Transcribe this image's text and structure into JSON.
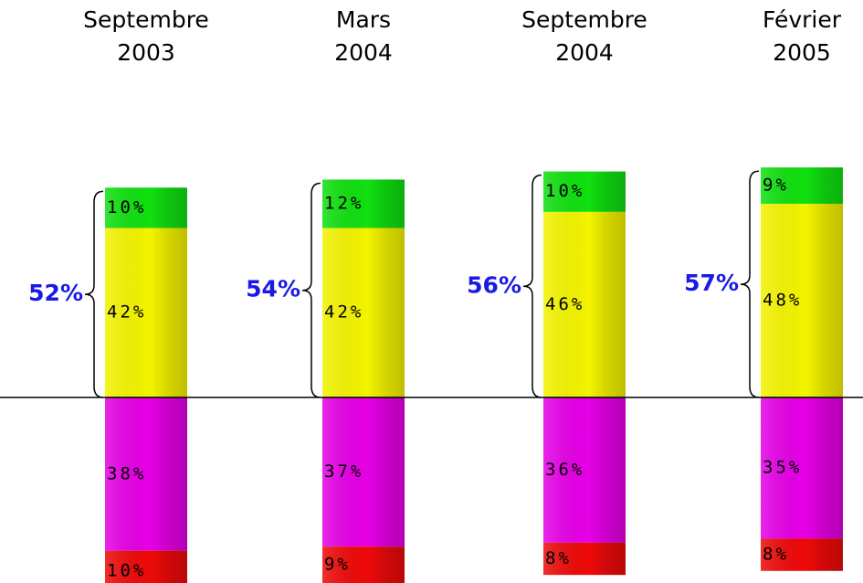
{
  "chart_data": {
    "type": "diverging-stacked-bar",
    "categories": [
      "Septembre 2003",
      "Mars 2004",
      "Septembre 2004",
      "Février 2005"
    ],
    "ylim": [
      -46,
      60
    ],
    "series": [
      {
        "color": "#f4f400",
        "side": "above",
        "values": [
          42,
          42,
          46,
          48
        ],
        "value_labels": [
          "42%",
          "42%",
          "46%",
          "48%"
        ]
      },
      {
        "color": "#10e010",
        "side": "above",
        "values": [
          10,
          12,
          10,
          9
        ],
        "value_labels": [
          "10%",
          "12%",
          "10%",
          "9%"
        ]
      },
      {
        "color": "#e600e6",
        "side": "below",
        "values": [
          38,
          37,
          36,
          35
        ],
        "value_labels": [
          "38%",
          "37%",
          "36%",
          "35%"
        ]
      },
      {
        "color": "#ee0a0a",
        "side": "below",
        "values": [
          10,
          9,
          8,
          8
        ],
        "value_labels": [
          "10%",
          "9%",
          "8%",
          "8%"
        ]
      }
    ],
    "totals": {
      "color": "#1a1ae6",
      "values": [
        52,
        54,
        56,
        57
      ],
      "value_labels": [
        "52%",
        "54%",
        "56%",
        "57%"
      ]
    }
  }
}
